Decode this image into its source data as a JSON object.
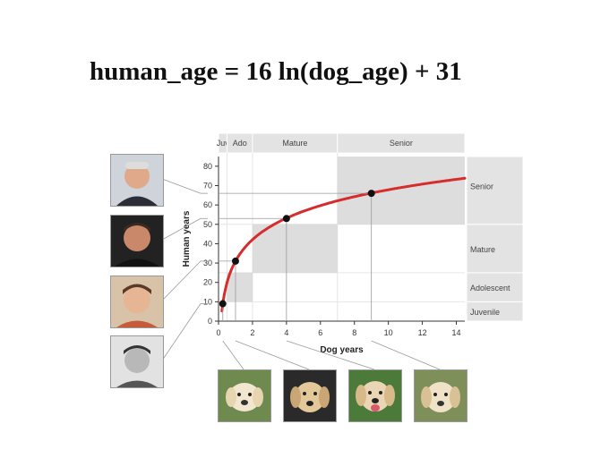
{
  "formula": "human_age = 16 ln(dog_age) + 31",
  "colors": {
    "curve": "#d62c2c",
    "band": "#e3e3e3",
    "box": "#d2d2d2",
    "axis": "#333333"
  },
  "chart_data": {
    "type": "line",
    "xlabel": "Dog years",
    "ylabel": "Human years",
    "xlim": [
      0,
      14.5
    ],
    "ylim": [
      0,
      85
    ],
    "x_ticks": [
      0,
      2,
      4,
      6,
      8,
      10,
      12,
      14
    ],
    "y_ticks": [
      0,
      10,
      20,
      30,
      40,
      50,
      60,
      70,
      80
    ],
    "grid": false,
    "series": [
      {
        "function": "16*ln(x)+31",
        "x_range": [
          0.2,
          14.5
        ]
      }
    ],
    "points": [
      {
        "x": 0.25,
        "y": 9
      },
      {
        "x": 1,
        "y": 31
      },
      {
        "x": 4,
        "y": 53
      },
      {
        "x": 9,
        "y": 66
      }
    ],
    "dog_stages": [
      {
        "label": "Juv",
        "from": 0,
        "to": 0.5
      },
      {
        "label": "Ado",
        "from": 0.5,
        "to": 2
      },
      {
        "label": "Mature",
        "from": 2,
        "to": 7
      },
      {
        "label": "Senior",
        "from": 7,
        "to": 14.5
      }
    ],
    "human_stages": [
      {
        "label": "Juvenile",
        "from": 0,
        "to": 10
      },
      {
        "label": "Adolescent",
        "from": 10,
        "to": 25
      },
      {
        "label": "Mature",
        "from": 25,
        "to": 50
      },
      {
        "label": "Senior",
        "from": 50,
        "to": 85
      }
    ],
    "stage_boxes": [
      {
        "x_from": 0.5,
        "x_to": 2,
        "y_from": 10,
        "y_to": 25
      },
      {
        "x_from": 2,
        "x_to": 7,
        "y_from": 25,
        "y_to": 50
      },
      {
        "x_from": 7,
        "x_to": 14.5,
        "y_from": 50,
        "y_to": 85
      }
    ]
  },
  "photos": {
    "people": [
      "person-photo-senior",
      "person-photo-mature",
      "person-photo-adolescent",
      "person-photo-juvenile"
    ],
    "dogs": [
      "dog-photo-puppy",
      "dog-photo-young",
      "dog-photo-adult",
      "dog-photo-senior"
    ]
  }
}
